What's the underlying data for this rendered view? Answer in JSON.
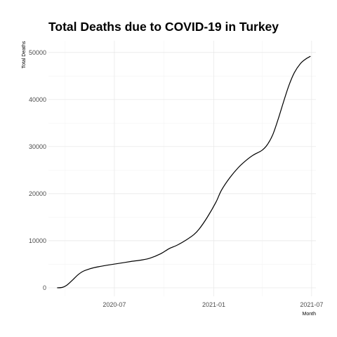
{
  "chart_data": {
    "type": "line",
    "title": "Total Deaths due to COVID-19 in Turkey",
    "xlabel": "Month",
    "ylabel": "Total Deaths",
    "x_ticks": [
      {
        "date": "2020-07-01",
        "label": "2020-07"
      },
      {
        "date": "2021-01-01",
        "label": "2021-01"
      },
      {
        "date": "2021-07-01",
        "label": "2021-07"
      }
    ],
    "x_minor_ticks": [
      "2020-04-01",
      "2020-10-01",
      "2021-04-01"
    ],
    "xlim": [
      "2020-03-01",
      "2021-07-09"
    ],
    "y_ticks": [
      0,
      10000,
      20000,
      30000,
      40000,
      50000
    ],
    "ylim": [
      -1800,
      52500
    ],
    "grid": true,
    "series": [
      {
        "points": [
          [
            "2020-03-17",
            0
          ],
          [
            "2020-03-27",
            100
          ],
          [
            "2020-04-05",
            650
          ],
          [
            "2020-04-15",
            1700
          ],
          [
            "2020-04-25",
            2800
          ],
          [
            "2020-05-05",
            3550
          ],
          [
            "2020-05-20",
            4150
          ],
          [
            "2020-06-05",
            4550
          ],
          [
            "2020-06-20",
            4850
          ],
          [
            "2020-07-10",
            5200
          ],
          [
            "2020-08-01",
            5600
          ],
          [
            "2020-08-20",
            5900
          ],
          [
            "2020-09-05",
            6300
          ],
          [
            "2020-09-25",
            7250
          ],
          [
            "2020-10-10",
            8300
          ],
          [
            "2020-10-25",
            9050
          ],
          [
            "2020-11-10",
            10100
          ],
          [
            "2020-11-25",
            11300
          ],
          [
            "2020-12-05",
            12500
          ],
          [
            "2020-12-20",
            15000
          ],
          [
            "2021-01-05",
            18200
          ],
          [
            "2021-01-15",
            20700
          ],
          [
            "2021-01-30",
            23300
          ],
          [
            "2021-02-15",
            25500
          ],
          [
            "2021-03-01",
            27000
          ],
          [
            "2021-03-15",
            28200
          ],
          [
            "2021-03-31",
            29200
          ],
          [
            "2021-04-10",
            30400
          ],
          [
            "2021-04-20",
            32500
          ],
          [
            "2021-04-30",
            35800
          ],
          [
            "2021-05-10",
            39500
          ],
          [
            "2021-05-20",
            43000
          ],
          [
            "2021-05-30",
            45700
          ],
          [
            "2021-06-10",
            47600
          ],
          [
            "2021-06-20",
            48600
          ],
          [
            "2021-06-29",
            49200
          ]
        ]
      }
    ]
  }
}
